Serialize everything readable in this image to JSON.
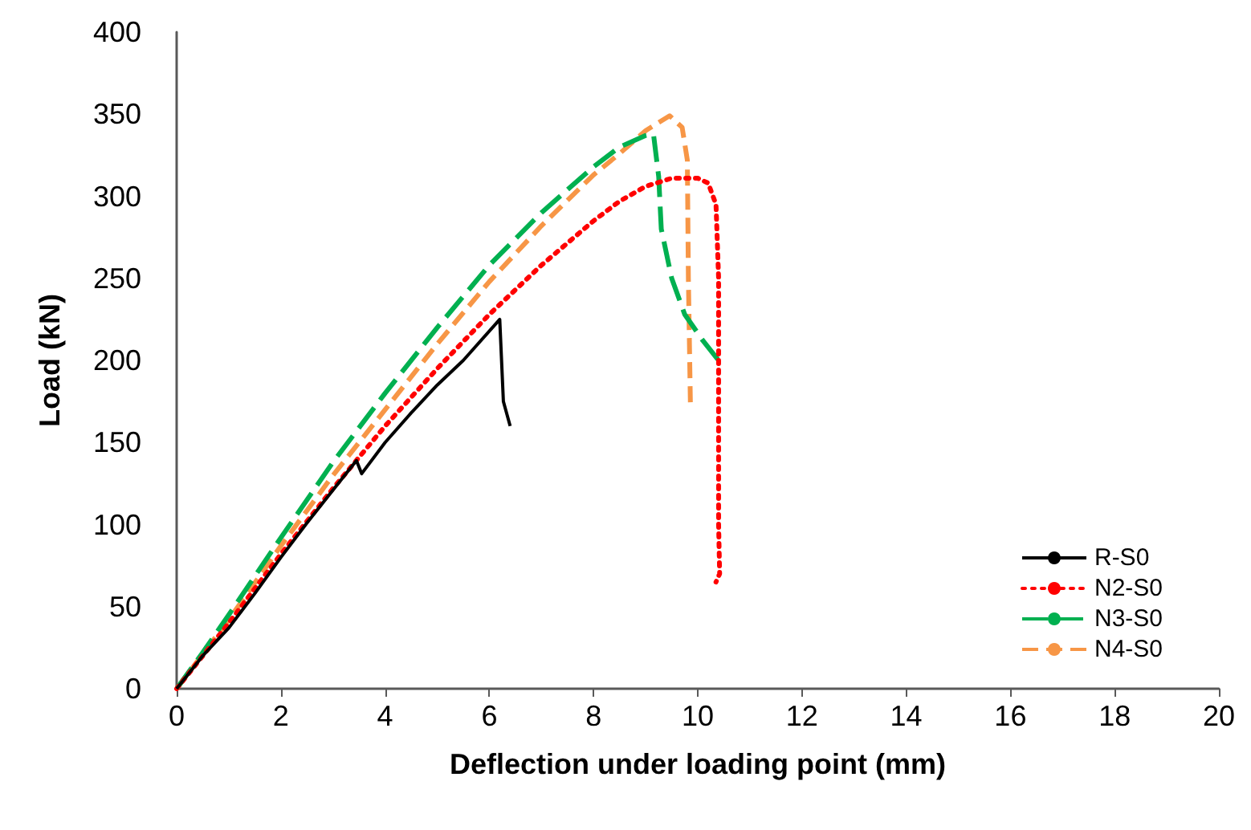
{
  "chart_data": {
    "type": "line",
    "xlabel": "Deflection under loading point (mm)",
    "ylabel": "Load (kN)",
    "xlim": [
      0,
      20
    ],
    "xticks": [
      0,
      2,
      4,
      6,
      8,
      10,
      12,
      14,
      16,
      18,
      20
    ],
    "ylim": [
      0,
      400
    ],
    "yticks": [
      0,
      50,
      100,
      150,
      200,
      250,
      300,
      350,
      400
    ],
    "grid": false,
    "legend": "bottom right",
    "marker": "none",
    "series": [
      {
        "name": "R-S0",
        "color": "#000000",
        "line_style": "solid",
        "x": [
          0,
          0.3,
          0.5,
          1,
          1.5,
          2,
          2.5,
          3,
          3.45,
          3.55,
          4,
          4.5,
          5,
          5.5,
          6.2,
          6.27,
          6.4
        ],
        "values": [
          0,
          12,
          20,
          37,
          58,
          80,
          101,
          121,
          139,
          131,
          150,
          168,
          185,
          200,
          225,
          175,
          160
        ]
      },
      {
        "name": "N2-S0",
        "color": "#ff0000",
        "line_style": "dotted",
        "x": [
          0,
          1,
          2,
          3,
          4,
          5,
          6,
          7,
          8,
          8.5,
          9,
          9.5,
          10,
          10.2,
          10.35,
          10.4,
          10.4,
          10.4,
          10.42,
          10.35
        ],
        "values": [
          0,
          40,
          82,
          122,
          160,
          195,
          228,
          258,
          285,
          297,
          306,
          311,
          311,
          308,
          295,
          250,
          150,
          100,
          70,
          65
        ]
      },
      {
        "name": "N3-S0",
        "color": "#00b050",
        "line_style": "dashed",
        "x": [
          0,
          0.5,
          1,
          2,
          3,
          4,
          5,
          6,
          7,
          8,
          8.5,
          9,
          9.15,
          9.25,
          9.3,
          9.5,
          9.75,
          10.1,
          10.45
        ],
        "values": [
          0,
          22,
          45,
          92,
          138,
          180,
          220,
          258,
          290,
          318,
          330,
          337,
          338,
          312,
          280,
          250,
          228,
          212,
          198
        ]
      },
      {
        "name": "N4-S0",
        "color": "#f79646",
        "line_style": "dashed",
        "x": [
          0,
          1,
          2,
          3,
          4,
          5,
          6,
          7,
          8,
          8.5,
          9,
          9.46,
          9.7,
          9.8,
          9.82,
          9.86
        ],
        "values": [
          0,
          42,
          87,
          130,
          170,
          210,
          248,
          282,
          313,
          326,
          340,
          349,
          342,
          322,
          250,
          171
        ]
      }
    ]
  }
}
